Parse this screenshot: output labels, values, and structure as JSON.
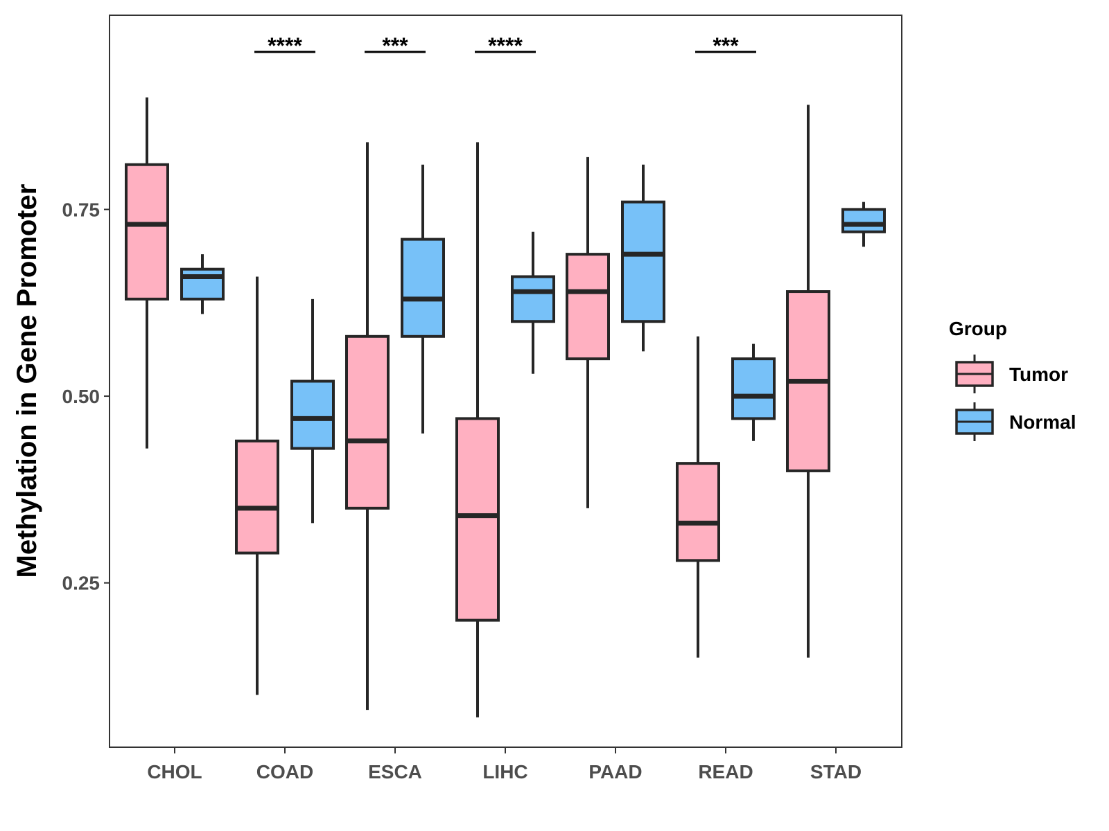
{
  "chart_data": {
    "type": "boxplot",
    "title": "",
    "xlabel": "",
    "ylabel": "Methylation in Gene Promoter",
    "ylim": [
      0.03,
      1.01
    ],
    "yticks": [
      0.25,
      0.5,
      0.75
    ],
    "ytick_labels": [
      "0.25",
      "0.50",
      "0.75"
    ],
    "categories": [
      "CHOL",
      "COAD",
      "ESCA",
      "LIHC",
      "PAAD",
      "READ",
      "STAD"
    ],
    "legend": {
      "title": "Group",
      "position": "right",
      "entries": [
        {
          "name": "Tumor",
          "color": "#FFB0C1"
        },
        {
          "name": "Normal",
          "color": "#77C1F8"
        }
      ]
    },
    "series": [
      {
        "name": "Tumor",
        "color": "#FFB0C1",
        "boxes": [
          {
            "min": 0.43,
            "q1": 0.63,
            "median": 0.73,
            "q3": 0.81,
            "max": 0.9
          },
          {
            "min": 0.1,
            "q1": 0.29,
            "median": 0.35,
            "q3": 0.44,
            "max": 0.66
          },
          {
            "min": 0.08,
            "q1": 0.35,
            "median": 0.44,
            "q3": 0.58,
            "max": 0.84
          },
          {
            "min": 0.07,
            "q1": 0.2,
            "median": 0.34,
            "q3": 0.47,
            "max": 0.84
          },
          {
            "min": 0.35,
            "q1": 0.55,
            "median": 0.64,
            "q3": 0.69,
            "max": 0.82
          },
          {
            "min": 0.15,
            "q1": 0.28,
            "median": 0.33,
            "q3": 0.41,
            "max": 0.58
          },
          {
            "min": 0.15,
            "q1": 0.4,
            "median": 0.52,
            "q3": 0.64,
            "max": 0.89
          }
        ]
      },
      {
        "name": "Normal",
        "color": "#77C1F8",
        "boxes": [
          {
            "min": 0.61,
            "q1": 0.63,
            "median": 0.66,
            "q3": 0.67,
            "max": 0.69
          },
          {
            "min": 0.33,
            "q1": 0.43,
            "median": 0.47,
            "q3": 0.52,
            "max": 0.63
          },
          {
            "min": 0.45,
            "q1": 0.58,
            "median": 0.63,
            "q3": 0.71,
            "max": 0.81
          },
          {
            "min": 0.53,
            "q1": 0.6,
            "median": 0.64,
            "q3": 0.66,
            "max": 0.72
          },
          {
            "min": 0.56,
            "q1": 0.6,
            "median": 0.69,
            "q3": 0.76,
            "max": 0.81
          },
          {
            "min": 0.44,
            "q1": 0.47,
            "median": 0.5,
            "q3": 0.55,
            "max": 0.57
          },
          {
            "min": 0.7,
            "q1": 0.72,
            "median": 0.73,
            "q3": 0.75,
            "max": 0.76
          }
        ]
      }
    ],
    "significance": [
      {
        "category": "COAD",
        "label": "****"
      },
      {
        "category": "ESCA",
        "label": "***"
      },
      {
        "category": "LIHC",
        "label": "****"
      },
      {
        "category": "READ",
        "label": "***"
      }
    ],
    "colors": {
      "box_stroke": "#262626",
      "axis": "#333333",
      "tick_text": "#4d4d4d"
    }
  }
}
